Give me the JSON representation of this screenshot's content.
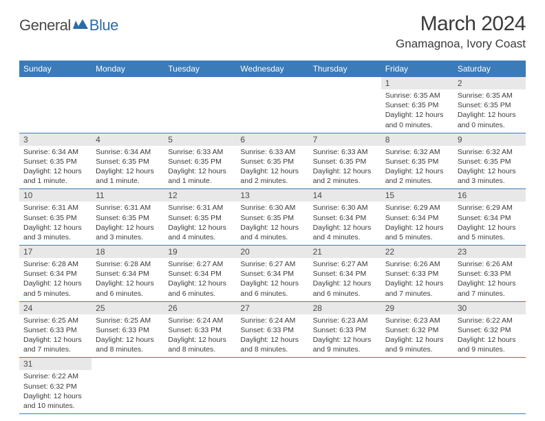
{
  "logo": {
    "general": "General",
    "blue": "Blue",
    "flag_color": "#2b6ca8"
  },
  "title": {
    "month_year": "March 2024",
    "location": "Gnamagnoa, Ivory Coast"
  },
  "colors": {
    "header_bg": "#3b7bb8",
    "header_text": "#ffffff",
    "day_num_bg": "#e8e8e8",
    "border": "#3b7bb8",
    "text": "#3a3a3a"
  },
  "day_headers": [
    "Sunday",
    "Monday",
    "Tuesday",
    "Wednesday",
    "Thursday",
    "Friday",
    "Saturday"
  ],
  "weeks": [
    [
      null,
      null,
      null,
      null,
      null,
      {
        "num": "1",
        "sunrise": "Sunrise: 6:35 AM",
        "sunset": "Sunset: 6:35 PM",
        "daylight": "Daylight: 12 hours and 0 minutes."
      },
      {
        "num": "2",
        "sunrise": "Sunrise: 6:35 AM",
        "sunset": "Sunset: 6:35 PM",
        "daylight": "Daylight: 12 hours and 0 minutes."
      }
    ],
    [
      {
        "num": "3",
        "sunrise": "Sunrise: 6:34 AM",
        "sunset": "Sunset: 6:35 PM",
        "daylight": "Daylight: 12 hours and 1 minute."
      },
      {
        "num": "4",
        "sunrise": "Sunrise: 6:34 AM",
        "sunset": "Sunset: 6:35 PM",
        "daylight": "Daylight: 12 hours and 1 minute."
      },
      {
        "num": "5",
        "sunrise": "Sunrise: 6:33 AM",
        "sunset": "Sunset: 6:35 PM",
        "daylight": "Daylight: 12 hours and 1 minute."
      },
      {
        "num": "6",
        "sunrise": "Sunrise: 6:33 AM",
        "sunset": "Sunset: 6:35 PM",
        "daylight": "Daylight: 12 hours and 2 minutes."
      },
      {
        "num": "7",
        "sunrise": "Sunrise: 6:33 AM",
        "sunset": "Sunset: 6:35 PM",
        "daylight": "Daylight: 12 hours and 2 minutes."
      },
      {
        "num": "8",
        "sunrise": "Sunrise: 6:32 AM",
        "sunset": "Sunset: 6:35 PM",
        "daylight": "Daylight: 12 hours and 2 minutes."
      },
      {
        "num": "9",
        "sunrise": "Sunrise: 6:32 AM",
        "sunset": "Sunset: 6:35 PM",
        "daylight": "Daylight: 12 hours and 3 minutes."
      }
    ],
    [
      {
        "num": "10",
        "sunrise": "Sunrise: 6:31 AM",
        "sunset": "Sunset: 6:35 PM",
        "daylight": "Daylight: 12 hours and 3 minutes."
      },
      {
        "num": "11",
        "sunrise": "Sunrise: 6:31 AM",
        "sunset": "Sunset: 6:35 PM",
        "daylight": "Daylight: 12 hours and 3 minutes."
      },
      {
        "num": "12",
        "sunrise": "Sunrise: 6:31 AM",
        "sunset": "Sunset: 6:35 PM",
        "daylight": "Daylight: 12 hours and 4 minutes."
      },
      {
        "num": "13",
        "sunrise": "Sunrise: 6:30 AM",
        "sunset": "Sunset: 6:35 PM",
        "daylight": "Daylight: 12 hours and 4 minutes."
      },
      {
        "num": "14",
        "sunrise": "Sunrise: 6:30 AM",
        "sunset": "Sunset: 6:34 PM",
        "daylight": "Daylight: 12 hours and 4 minutes."
      },
      {
        "num": "15",
        "sunrise": "Sunrise: 6:29 AM",
        "sunset": "Sunset: 6:34 PM",
        "daylight": "Daylight: 12 hours and 5 minutes."
      },
      {
        "num": "16",
        "sunrise": "Sunrise: 6:29 AM",
        "sunset": "Sunset: 6:34 PM",
        "daylight": "Daylight: 12 hours and 5 minutes."
      }
    ],
    [
      {
        "num": "17",
        "sunrise": "Sunrise: 6:28 AM",
        "sunset": "Sunset: 6:34 PM",
        "daylight": "Daylight: 12 hours and 5 minutes."
      },
      {
        "num": "18",
        "sunrise": "Sunrise: 6:28 AM",
        "sunset": "Sunset: 6:34 PM",
        "daylight": "Daylight: 12 hours and 6 minutes."
      },
      {
        "num": "19",
        "sunrise": "Sunrise: 6:27 AM",
        "sunset": "Sunset: 6:34 PM",
        "daylight": "Daylight: 12 hours and 6 minutes."
      },
      {
        "num": "20",
        "sunrise": "Sunrise: 6:27 AM",
        "sunset": "Sunset: 6:34 PM",
        "daylight": "Daylight: 12 hours and 6 minutes."
      },
      {
        "num": "21",
        "sunrise": "Sunrise: 6:27 AM",
        "sunset": "Sunset: 6:34 PM",
        "daylight": "Daylight: 12 hours and 6 minutes."
      },
      {
        "num": "22",
        "sunrise": "Sunrise: 6:26 AM",
        "sunset": "Sunset: 6:33 PM",
        "daylight": "Daylight: 12 hours and 7 minutes."
      },
      {
        "num": "23",
        "sunrise": "Sunrise: 6:26 AM",
        "sunset": "Sunset: 6:33 PM",
        "daylight": "Daylight: 12 hours and 7 minutes."
      }
    ],
    [
      {
        "num": "24",
        "sunrise": "Sunrise: 6:25 AM",
        "sunset": "Sunset: 6:33 PM",
        "daylight": "Daylight: 12 hours and 7 minutes."
      },
      {
        "num": "25",
        "sunrise": "Sunrise: 6:25 AM",
        "sunset": "Sunset: 6:33 PM",
        "daylight": "Daylight: 12 hours and 8 minutes."
      },
      {
        "num": "26",
        "sunrise": "Sunrise: 6:24 AM",
        "sunset": "Sunset: 6:33 PM",
        "daylight": "Daylight: 12 hours and 8 minutes."
      },
      {
        "num": "27",
        "sunrise": "Sunrise: 6:24 AM",
        "sunset": "Sunset: 6:33 PM",
        "daylight": "Daylight: 12 hours and 8 minutes."
      },
      {
        "num": "28",
        "sunrise": "Sunrise: 6:23 AM",
        "sunset": "Sunset: 6:33 PM",
        "daylight": "Daylight: 12 hours and 9 minutes."
      },
      {
        "num": "29",
        "sunrise": "Sunrise: 6:23 AM",
        "sunset": "Sunset: 6:32 PM",
        "daylight": "Daylight: 12 hours and 9 minutes."
      },
      {
        "num": "30",
        "sunrise": "Sunrise: 6:22 AM",
        "sunset": "Sunset: 6:32 PM",
        "daylight": "Daylight: 12 hours and 9 minutes."
      }
    ],
    [
      {
        "num": "31",
        "sunrise": "Sunrise: 6:22 AM",
        "sunset": "Sunset: 6:32 PM",
        "daylight": "Daylight: 12 hours and 10 minutes."
      },
      null,
      null,
      null,
      null,
      null,
      null
    ]
  ]
}
